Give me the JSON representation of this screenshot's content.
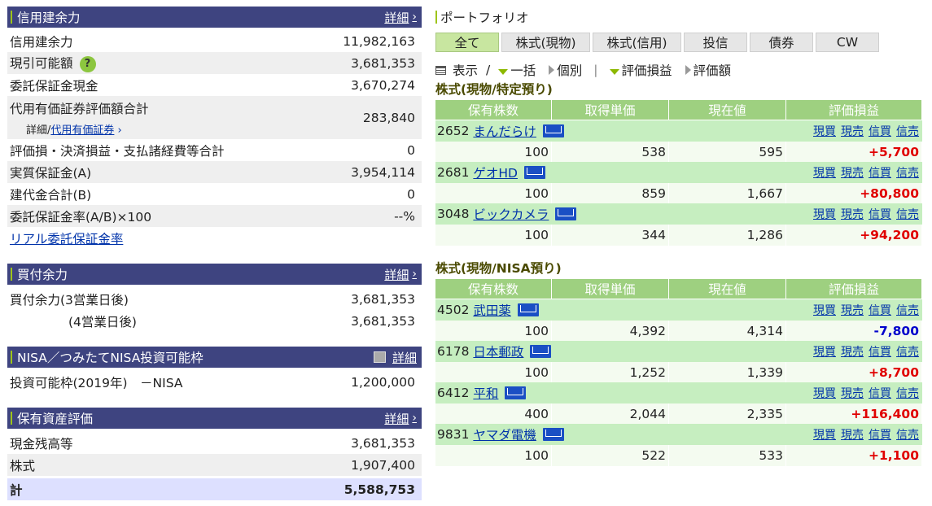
{
  "credit": {
    "title": "信用建余力",
    "detail": "詳細",
    "rows": [
      {
        "label": "信用建余力",
        "value": "11,982,163"
      },
      {
        "label": "現引可能額",
        "value": "3,681,353"
      },
      {
        "label": "委託保証金現金",
        "value": "3,670,274"
      },
      {
        "label": "代用有価証券評価額合計",
        "value": "283,840",
        "sub_prefix": "詳細/",
        "sub_link": "代用有価証券"
      },
      {
        "label": "評価損・決済損益・支払諸経費等合計",
        "value": "0"
      },
      {
        "label": "実質保証金(A)",
        "value": "3,954,114"
      },
      {
        "label": "建代金合計(B)",
        "value": "0"
      },
      {
        "label": "委託保証金率(A/B)×100",
        "value": "--%"
      }
    ],
    "real_link": "リアル委託保証金率"
  },
  "buying": {
    "title": "買付余力",
    "detail": "詳細",
    "rows": [
      {
        "label": "買付余力(3営業日後)",
        "value": "3,681,353"
      },
      {
        "label": "(4営業日後)",
        "value": "3,681,353"
      }
    ]
  },
  "nisa": {
    "title": "NISA／つみたてNISA投資可能枠",
    "detail": "詳細",
    "rows": [
      {
        "label": "投資可能枠(2019年)　－NISA",
        "value": "1,200,000"
      }
    ]
  },
  "assets": {
    "title": "保有資産評価",
    "detail": "詳細",
    "rows": [
      {
        "label": "現金残高等",
        "value": "3,681,353"
      },
      {
        "label": "株式",
        "value": "1,907,400"
      },
      {
        "label": "計",
        "value": "5,588,753"
      }
    ]
  },
  "portfolio": {
    "title": "ポートフォリオ",
    "tabs": [
      "全て",
      "株式(現物)",
      "株式(信用)",
      "投信",
      "債券",
      "CW"
    ],
    "tools": {
      "display": "表示",
      "sep": "/",
      "collapse": "一括",
      "individual": "個別",
      "pl": "評価損益",
      "amount": "評価額"
    },
    "headers": [
      "保有株数",
      "取得単価",
      "現在値",
      "評価損益"
    ],
    "actions": [
      "現買",
      "現売",
      "信買",
      "信売"
    ],
    "sections": [
      {
        "title": "株式(現物/特定預り)",
        "stocks": [
          {
            "code": "2652",
            "name": "まんだらけ",
            "qty": "100",
            "cost": "538",
            "price": "595",
            "pl": "+5,700"
          },
          {
            "code": "2681",
            "name": "ゲオHD",
            "qty": "100",
            "cost": "859",
            "price": "1,667",
            "pl": "+80,800"
          },
          {
            "code": "3048",
            "name": "ビックカメラ",
            "qty": "100",
            "cost": "344",
            "price": "1,286",
            "pl": "+94,200"
          }
        ]
      },
      {
        "title": "株式(現物/NISA預り)",
        "stocks": [
          {
            "code": "4502",
            "name": "武田薬",
            "qty": "100",
            "cost": "4,392",
            "price": "4,314",
            "pl": "-7,800"
          },
          {
            "code": "6178",
            "name": "日本郵政",
            "qty": "100",
            "cost": "1,252",
            "price": "1,339",
            "pl": "+8,700"
          },
          {
            "code": "6412",
            "name": "平和",
            "qty": "400",
            "cost": "2,044",
            "price": "2,335",
            "pl": "+116,400"
          },
          {
            "code": "9831",
            "name": "ヤマダ電機",
            "qty": "100",
            "cost": "522",
            "price": "533",
            "pl": "+1,100"
          }
        ]
      }
    ]
  },
  "colors": {
    "header": "#3e4480",
    "accent": "#9ec41a",
    "table_head": "#9ed080",
    "positive": "#e00000",
    "negative": "#0000cc"
  }
}
